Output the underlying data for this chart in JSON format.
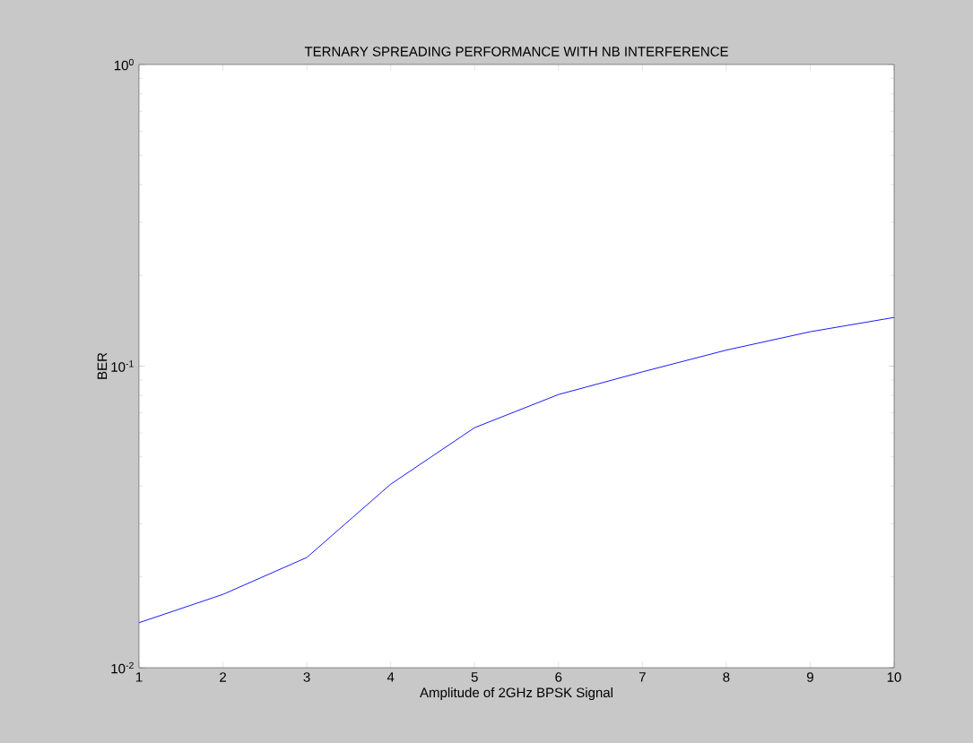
{
  "chart_data": {
    "type": "line",
    "title": "TERNARY SPREADING PERFORMANCE WITH NB INTERFERENCE",
    "xlabel": "Amplitude of 2GHz BPSK Signal",
    "ylabel": "BER",
    "log": true,
    "grid": false,
    "marker": "none",
    "line_style": "solid",
    "x": [
      1,
      2,
      3,
      4,
      5,
      6,
      7,
      8,
      9,
      10
    ],
    "series": [
      {
        "color": "#0000ff",
        "values": [
          0.0141,
          0.0175,
          0.0232,
          0.0406,
          0.0625,
          0.0805,
          0.0957,
          0.113,
          0.13,
          0.145
        ]
      }
    ],
    "xlim": [
      1,
      10
    ],
    "xticks": [
      1,
      2,
      3,
      4,
      5,
      6,
      7,
      8,
      9,
      10
    ],
    "ylim": [
      0.01,
      1
    ],
    "yticks": [
      {
        "value": 0.01,
        "label": "10$^{-2}$"
      },
      {
        "value": 0.1,
        "label": "10$^{-1}$"
      },
      {
        "value": 1,
        "label": "10$^{0}$"
      }
    ]
  }
}
